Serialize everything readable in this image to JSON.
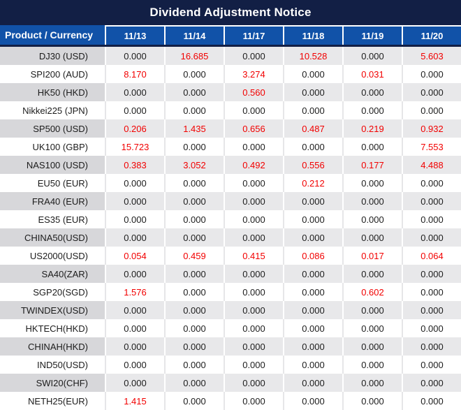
{
  "title": "Dividend Adjustment Notice",
  "table": {
    "columns": [
      "Product / Currency",
      "11/13",
      "11/14",
      "11/17",
      "11/18",
      "11/19",
      "11/20"
    ],
    "zero_display": "0.000",
    "rows": [
      {
        "product": "DJ30 (USD)",
        "values": [
          "0.000",
          "16.685",
          "0.000",
          "10.528",
          "0.000",
          "5.603"
        ]
      },
      {
        "product": "SPI200 (AUD)",
        "values": [
          "8.170",
          "0.000",
          "3.274",
          "0.000",
          "0.031",
          "0.000"
        ]
      },
      {
        "product": "HK50 (HKD)",
        "values": [
          "0.000",
          "0.000",
          "0.560",
          "0.000",
          "0.000",
          "0.000"
        ]
      },
      {
        "product": "Nikkei225 (JPN)",
        "values": [
          "0.000",
          "0.000",
          "0.000",
          "0.000",
          "0.000",
          "0.000"
        ]
      },
      {
        "product": "SP500 (USD)",
        "values": [
          "0.206",
          "1.435",
          "0.656",
          "0.487",
          "0.219",
          "0.932"
        ]
      },
      {
        "product": "UK100 (GBP)",
        "values": [
          "15.723",
          "0.000",
          "0.000",
          "0.000",
          "0.000",
          "7.553"
        ]
      },
      {
        "product": "NAS100 (USD)",
        "values": [
          "0.383",
          "3.052",
          "0.492",
          "0.556",
          "0.177",
          "4.488"
        ]
      },
      {
        "product": "EU50 (EUR)",
        "values": [
          "0.000",
          "0.000",
          "0.000",
          "0.212",
          "0.000",
          "0.000"
        ]
      },
      {
        "product": "FRA40 (EUR)",
        "values": [
          "0.000",
          "0.000",
          "0.000",
          "0.000",
          "0.000",
          "0.000"
        ]
      },
      {
        "product": "ES35 (EUR)",
        "values": [
          "0.000",
          "0.000",
          "0.000",
          "0.000",
          "0.000",
          "0.000"
        ]
      },
      {
        "product": "CHINA50(USD)",
        "values": [
          "0.000",
          "0.000",
          "0.000",
          "0.000",
          "0.000",
          "0.000"
        ]
      },
      {
        "product": "US2000(USD)",
        "values": [
          "0.054",
          "0.459",
          "0.415",
          "0.086",
          "0.017",
          "0.064"
        ]
      },
      {
        "product": "SA40(ZAR)",
        "values": [
          "0.000",
          "0.000",
          "0.000",
          "0.000",
          "0.000",
          "0.000"
        ]
      },
      {
        "product": "SGP20(SGD)",
        "values": [
          "1.576",
          "0.000",
          "0.000",
          "0.000",
          "0.602",
          "0.000"
        ]
      },
      {
        "product": "TWINDEX(USD)",
        "values": [
          "0.000",
          "0.000",
          "0.000",
          "0.000",
          "0.000",
          "0.000"
        ]
      },
      {
        "product": "HKTECH(HKD)",
        "values": [
          "0.000",
          "0.000",
          "0.000",
          "0.000",
          "0.000",
          "0.000"
        ]
      },
      {
        "product": "CHINAH(HKD)",
        "values": [
          "0.000",
          "0.000",
          "0.000",
          "0.000",
          "0.000",
          "0.000"
        ]
      },
      {
        "product": "IND50(USD)",
        "values": [
          "0.000",
          "0.000",
          "0.000",
          "0.000",
          "0.000",
          "0.000"
        ]
      },
      {
        "product": "SWI20(CHF)",
        "values": [
          "0.000",
          "0.000",
          "0.000",
          "0.000",
          "0.000",
          "0.000"
        ]
      },
      {
        "product": "NETH25(EUR)",
        "values": [
          "1.415",
          "0.000",
          "0.000",
          "0.000",
          "0.000",
          "0.000"
        ]
      }
    ]
  },
  "colors": {
    "title_bg": "#121F45",
    "header_bg": "#1152A8",
    "header_divider": "#121F45",
    "row_gray_label_bg": "#D7D7DA",
    "row_gray_value_bg": "#E8E8EA",
    "row_white_bg": "#FFFFFF",
    "value_red": "#F20000",
    "value_black": "#1C1C1C",
    "header_text": "#FFFFFF"
  }
}
